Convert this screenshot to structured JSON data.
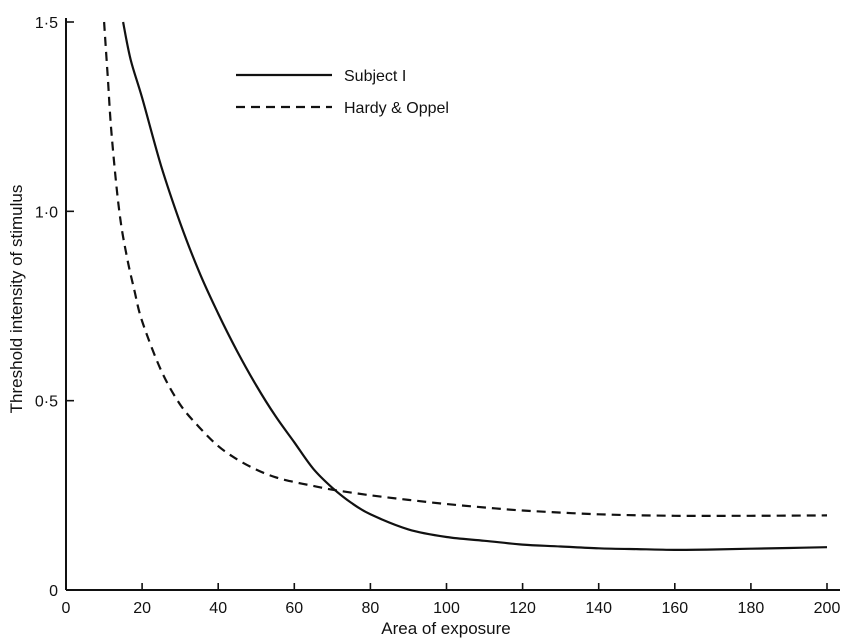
{
  "chart_data": {
    "type": "line",
    "title": "",
    "xlabel": "Area of exposure",
    "ylabel": "Threshold intensity of stimulus",
    "xlim": [
      0,
      205
    ],
    "ylim": [
      0,
      1.5
    ],
    "x_ticks": [
      0,
      20,
      40,
      60,
      80,
      100,
      120,
      140,
      160,
      180,
      200
    ],
    "x_tick_labels": [
      "0",
      "20",
      "40",
      "60",
      "80",
      "100",
      "120",
      "140",
      "160",
      "180",
      "200"
    ],
    "y_ticks": [
      0,
      0.5,
      1.0,
      1.5
    ],
    "y_tick_labels": [
      "0",
      "0·5",
      "1·0",
      "1·5"
    ],
    "grid": false,
    "legend_position": "top-left",
    "series": [
      {
        "name": "Subject I",
        "style": "solid",
        "color": "#111111",
        "x": [
          15,
          17,
          20,
          25,
          30,
          35,
          40,
          45,
          50,
          55,
          60,
          65,
          70,
          75,
          80,
          90,
          100,
          110,
          120,
          130,
          140,
          150,
          160,
          170,
          180,
          190,
          200
        ],
        "y": [
          1.5,
          1.4,
          1.3,
          1.12,
          0.97,
          0.84,
          0.73,
          0.63,
          0.54,
          0.46,
          0.39,
          0.32,
          0.27,
          0.23,
          0.2,
          0.16,
          0.14,
          0.13,
          0.12,
          0.115,
          0.11,
          0.108,
          0.106,
          0.107,
          0.109,
          0.111,
          0.113
        ]
      },
      {
        "name": "Hardy & Oppel",
        "style": "dashed",
        "color": "#111111",
        "x": [
          10,
          11,
          12,
          14,
          16,
          18,
          20,
          25,
          30,
          35,
          40,
          45,
          50,
          55,
          60,
          65,
          70,
          80,
          90,
          100,
          110,
          120,
          140,
          160,
          180,
          200
        ],
        "y": [
          1.5,
          1.35,
          1.2,
          1.0,
          0.88,
          0.79,
          0.71,
          0.58,
          0.49,
          0.43,
          0.38,
          0.345,
          0.318,
          0.298,
          0.285,
          0.275,
          0.265,
          0.25,
          0.238,
          0.227,
          0.218,
          0.21,
          0.2,
          0.196,
          0.196,
          0.197
        ]
      }
    ]
  }
}
